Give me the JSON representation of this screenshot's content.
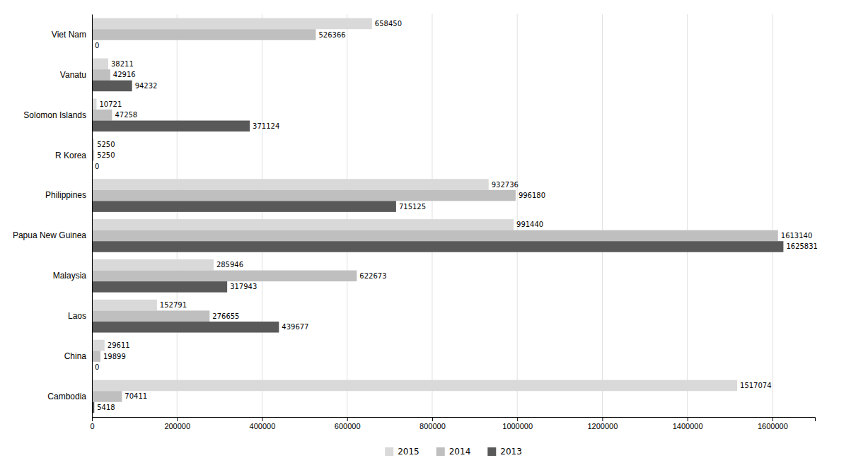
{
  "chart_data": {
    "type": "bar",
    "orientation": "horizontal",
    "categories": [
      "Viet Nam",
      "Vanatu",
      "Solomon Islands",
      "R Korea",
      "Philippines",
      "Papua New Guinea",
      "Malaysia",
      "Laos",
      "China",
      "Cambodia"
    ],
    "series": [
      {
        "name": "2015",
        "color": "#d9d9d9",
        "values": [
          658450,
          38211,
          10721,
          5250,
          932736,
          991440,
          285946,
          152791,
          29611,
          1517074
        ]
      },
      {
        "name": "2014",
        "color": "#bfbfbf",
        "values": [
          526366,
          42916,
          47258,
          5250,
          996180,
          1613140,
          622673,
          276655,
          19899,
          70411
        ]
      },
      {
        "name": "2013",
        "color": "#595959",
        "values": [
          0,
          94232,
          371124,
          0,
          715125,
          1625831,
          317943,
          439677,
          0,
          5418
        ]
      }
    ],
    "xlim": [
      0,
      1700000
    ],
    "xticks": [
      0,
      200000,
      400000,
      600000,
      800000,
      1000000,
      1200000,
      1400000,
      1600000
    ],
    "grid": true,
    "data_labels": true,
    "legend": "bottom"
  }
}
